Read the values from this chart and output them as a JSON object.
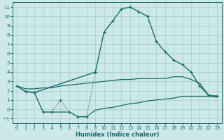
{
  "xlabel": "Humidex (Indice chaleur)",
  "bg_color": "#cce8e8",
  "grid_color": "#aacccc",
  "line_color": "#1a6b6b",
  "ylim": [
    -1.5,
    11.5
  ],
  "xlim": [
    -0.5,
    23.5
  ],
  "yticks": [
    -1,
    0,
    1,
    2,
    3,
    4,
    5,
    6,
    7,
    8,
    9,
    10,
    11
  ],
  "xticks": [
    0,
    1,
    2,
    3,
    4,
    5,
    6,
    7,
    8,
    9,
    10,
    11,
    12,
    13,
    14,
    15,
    16,
    17,
    18,
    19,
    20,
    21,
    22,
    23
  ],
  "line_upper_x": [
    0,
    1,
    2,
    3,
    4,
    5,
    6,
    7,
    8,
    9,
    10,
    11,
    12,
    13,
    14,
    15,
    16,
    17,
    18,
    19,
    20,
    21,
    22,
    23
  ],
  "line_upper_y": [
    2.5,
    2.2,
    2.2,
    2.3,
    2.3,
    2.5,
    2.6,
    2.7,
    2.8,
    2.9,
    3.0,
    3.1,
    3.2,
    3.2,
    3.3,
    3.3,
    3.3,
    3.3,
    3.5,
    3.5,
    3.2,
    2.8,
    1.5,
    1.4
  ],
  "line_lower_x": [
    0,
    1,
    2,
    3,
    4,
    5,
    6,
    7,
    8,
    9,
    10,
    11,
    12,
    13,
    14,
    15,
    16,
    17,
    18,
    19,
    20,
    21,
    22,
    23
  ],
  "line_lower_y": [
    2.5,
    1.9,
    1.8,
    -0.3,
    -0.3,
    -0.3,
    -0.3,
    -0.8,
    -0.8,
    -0.1,
    0.1,
    0.2,
    0.4,
    0.6,
    0.7,
    0.9,
    1.0,
    1.1,
    1.2,
    1.4,
    1.4,
    1.4,
    1.4,
    1.3
  ],
  "line_main_x": [
    0,
    1,
    2,
    9,
    10,
    11,
    12,
    13,
    14,
    15,
    16,
    17,
    18,
    19,
    20,
    21,
    22,
    23
  ],
  "line_main_y": [
    2.5,
    1.9,
    1.8,
    4.0,
    8.3,
    9.5,
    10.8,
    11.0,
    10.5,
    10.0,
    7.3,
    6.2,
    5.3,
    4.8,
    4.0,
    2.5,
    1.5,
    1.4
  ],
  "line_dotted_x": [
    2,
    3,
    4,
    5,
    6,
    7,
    8,
    9
  ],
  "line_dotted_y": [
    1.8,
    -0.3,
    -0.3,
    1.0,
    -0.3,
    -0.8,
    -0.8,
    4.0
  ]
}
